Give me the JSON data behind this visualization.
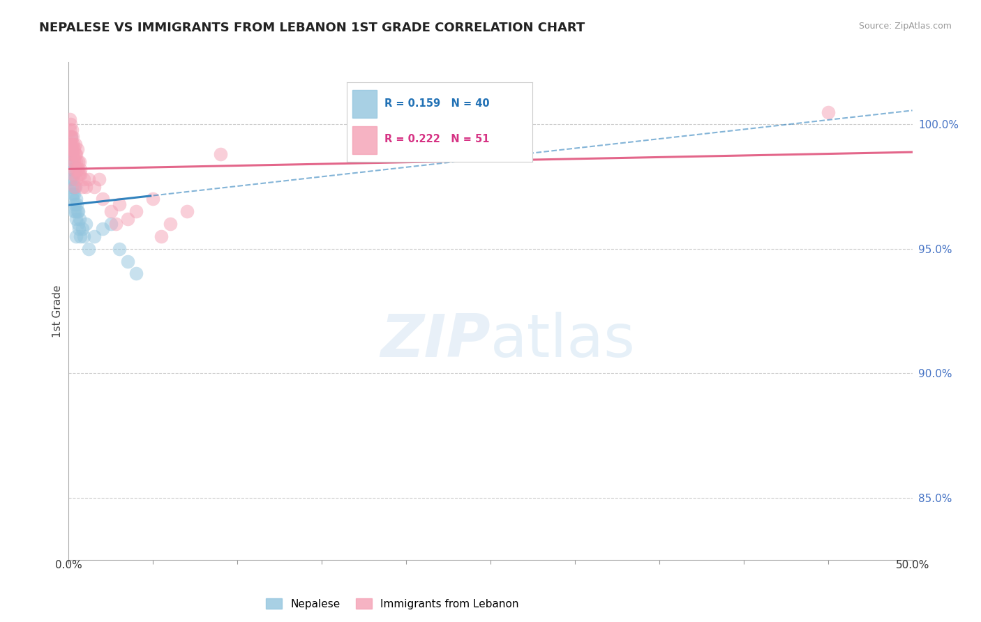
{
  "title": "NEPALESE VS IMMIGRANTS FROM LEBANON 1ST GRADE CORRELATION CHART",
  "source": "Source: ZipAtlas.com",
  "ylabel": "1st Grade",
  "xlim": [
    0.0,
    50.0
  ],
  "ylim": [
    82.5,
    102.5
  ],
  "yticks": [
    100.0,
    95.0,
    90.0,
    85.0
  ],
  "ytick_labels": [
    "100.0%",
    "95.0%",
    "90.0%",
    "85.0%"
  ],
  "blue_R": 0.159,
  "blue_N": 40,
  "pink_R": 0.222,
  "pink_N": 51,
  "blue_color": "#92c5de",
  "pink_color": "#f4a0b5",
  "blue_line_color": "#3182bd",
  "pink_line_color": "#e3668a",
  "legend_label_blue": "Nepalese",
  "legend_label_pink": "Immigrants from Lebanon",
  "blue_scatter_x": [
    0.05,
    0.08,
    0.1,
    0.12,
    0.15,
    0.18,
    0.2,
    0.22,
    0.25,
    0.28,
    0.3,
    0.32,
    0.35,
    0.38,
    0.4,
    0.42,
    0.45,
    0.48,
    0.5,
    0.55,
    0.6,
    0.65,
    0.7,
    0.8,
    0.9,
    1.0,
    1.2,
    1.5,
    2.0,
    2.5,
    3.0,
    3.5,
    4.0,
    0.13,
    0.17,
    0.23,
    0.33,
    0.43,
    0.58,
    22.0
  ],
  "blue_scatter_y": [
    98.5,
    99.2,
    97.8,
    98.8,
    99.5,
    97.5,
    98.2,
    97.0,
    97.8,
    98.0,
    96.5,
    97.2,
    96.8,
    96.5,
    97.5,
    96.2,
    97.0,
    96.8,
    96.5,
    96.0,
    95.8,
    96.2,
    95.5,
    95.8,
    95.5,
    96.0,
    95.0,
    95.5,
    95.8,
    96.0,
    95.0,
    94.5,
    94.0,
    99.0,
    98.5,
    97.2,
    97.5,
    95.5,
    96.5,
    100.2
  ],
  "pink_scatter_x": [
    0.05,
    0.08,
    0.1,
    0.12,
    0.15,
    0.18,
    0.2,
    0.22,
    0.25,
    0.28,
    0.3,
    0.32,
    0.35,
    0.38,
    0.4,
    0.42,
    0.45,
    0.48,
    0.5,
    0.55,
    0.6,
    0.65,
    0.7,
    0.8,
    0.9,
    1.0,
    1.2,
    1.5,
    2.0,
    2.5,
    3.0,
    3.5,
    4.0,
    5.0,
    6.0,
    7.0,
    0.13,
    0.17,
    0.23,
    0.33,
    0.43,
    0.68,
    1.8,
    2.8,
    5.5,
    9.0,
    0.16,
    0.26,
    0.36,
    0.56,
    45.0
  ],
  "pink_scatter_y": [
    99.8,
    100.2,
    99.5,
    100.0,
    99.2,
    99.8,
    99.0,
    99.5,
    98.8,
    99.2,
    98.5,
    99.0,
    98.2,
    98.8,
    99.2,
    98.5,
    98.8,
    98.2,
    99.0,
    98.5,
    98.0,
    98.5,
    98.0,
    97.5,
    97.8,
    97.5,
    97.8,
    97.5,
    97.0,
    96.5,
    96.8,
    96.2,
    96.5,
    97.0,
    96.0,
    96.5,
    99.5,
    99.2,
    98.8,
    98.5,
    97.8,
    98.2,
    97.8,
    96.0,
    95.5,
    98.8,
    99.0,
    98.0,
    97.5,
    98.2,
    100.5
  ]
}
